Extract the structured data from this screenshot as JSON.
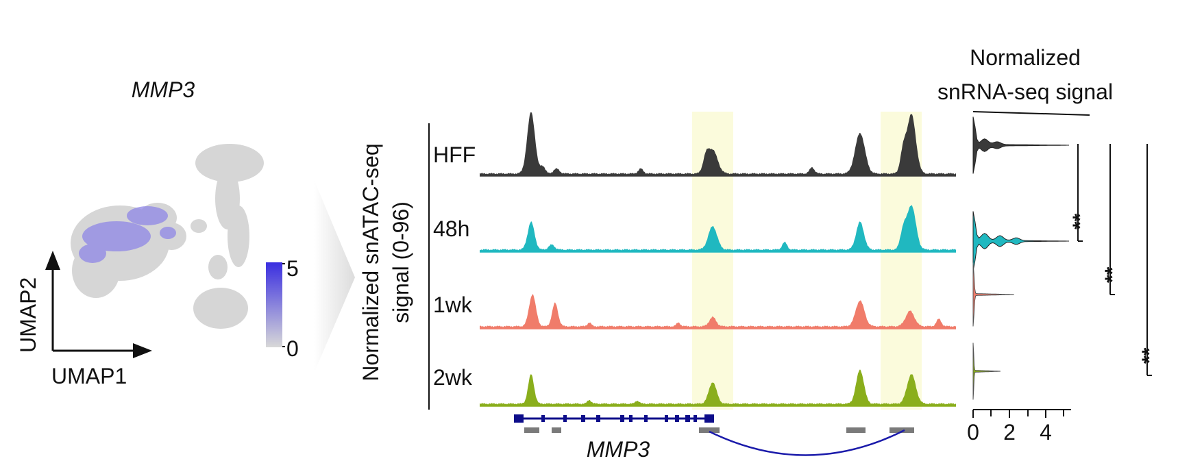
{
  "umap": {
    "title": "MMP3",
    "x_axis_label": "UMAP1",
    "y_axis_label": "UMAP2",
    "colorbar": {
      "max_label": "5",
      "min_label": "0",
      "high_color": "#3a2ee0",
      "low_color": "#d8d8d8"
    }
  },
  "tracks": {
    "y_axis_label_line1": "Normalized snATAC-seq",
    "y_axis_label_line2": "signal (0-96)",
    "rows": [
      {
        "label": "HFF",
        "color": "#3a3a3a"
      },
      {
        "label": "48h",
        "color": "#20b8c0"
      },
      {
        "label": "1wk",
        "color": "#f07c6a"
      },
      {
        "label": "2wk",
        "color": "#8aae1c"
      }
    ],
    "highlight_color": "#fbfbdc",
    "gene_label": "MMP3",
    "gene_color": "#0d0d8a",
    "peak_box_color": "#7a7a7a",
    "loop_color": "#1a1aaa"
  },
  "violin": {
    "title_line1": "Normalized",
    "title_line2": "snRNA-seq signal",
    "x_ticks": [
      "0",
      "2",
      "4"
    ],
    "significance": [
      "**",
      "**",
      "**"
    ]
  }
}
